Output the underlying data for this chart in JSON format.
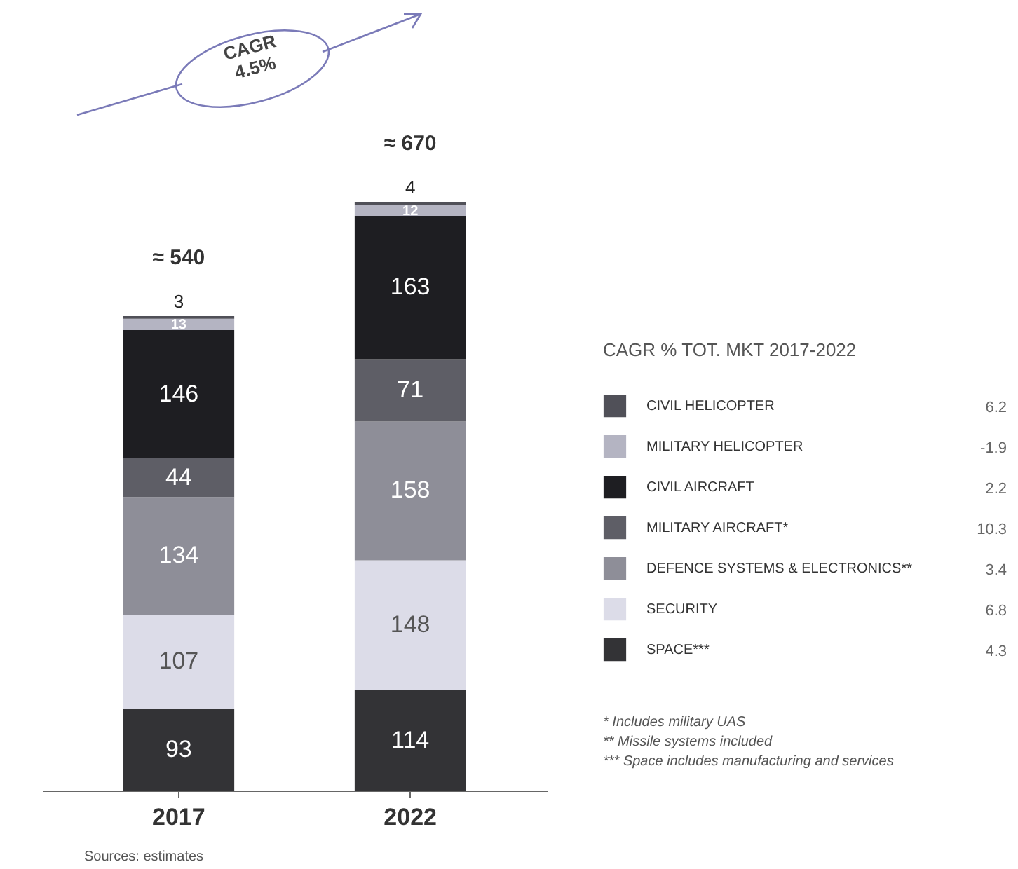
{
  "chart_data": {
    "type": "bar",
    "stacked": true,
    "data_labels": true,
    "legend": "right",
    "legend_title": "CAGR % TOT. MKT 2017-2022",
    "categories": [
      "2017",
      "2022"
    ],
    "series": [
      {
        "name": "SPACE***",
        "color": "#333336",
        "values": [
          93,
          114
        ]
      },
      {
        "name": "SECURITY",
        "color": "#dcdce8",
        "values": [
          107,
          148
        ]
      },
      {
        "name": "DEFENCE SYSTEMS & ELECTRONICS**",
        "color": "#8e8e98",
        "values": [
          134,
          158
        ]
      },
      {
        "name": "MILITARY AIRCRAFT*",
        "color": "#5e5e66",
        "values": [
          44,
          71
        ]
      },
      {
        "name": "CIVIL AIRCRAFT",
        "color": "#1e1e22",
        "values": [
          146,
          163
        ]
      },
      {
        "name": "MILITARY HELICOPTER",
        "color": "#b4b4c2",
        "values": [
          13,
          12
        ]
      },
      {
        "name": "CIVIL HELICOPTER",
        "color": "#505058",
        "values": [
          3,
          4
        ]
      }
    ],
    "totals": [
      "≈ 540",
      "≈ 670"
    ],
    "annotations": [
      "CAGR 4.5%",
      "4.3",
      "6.8",
      "3.4",
      "10.3",
      "2.2",
      "-1.9",
      "6.2",
      "* Includes military UAS",
      "** Missile systems included",
      "*** Space includes manufacturing and services",
      "Sources: estimates"
    ]
  }
}
